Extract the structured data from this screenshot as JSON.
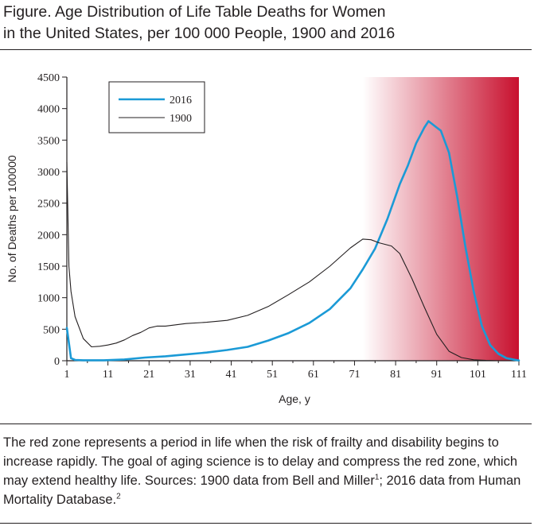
{
  "figure": {
    "title_line1": "Figure. Age Distribution of Life Table Deaths for Women",
    "title_line2": "in the United States, per 100 000 People, 1900 and 2016"
  },
  "caption": {
    "text1": "The red zone represents a period in life when the risk of frailty and disability begins to increase rapidly. The goal of aging science is to delay and compress the red zone, which may extend healthy life. Sources: 1900 data from Bell and Miller",
    "ref1": "1",
    "text2": "; 2016 data from Human Mortality Database.",
    "ref2": "2"
  },
  "colors": {
    "series_2016": "#1b9ad6",
    "series_1900": "#231f20",
    "red_zone_start": "#ffffff",
    "red_zone_end": "#c8102e"
  },
  "chart_data": {
    "type": "line",
    "xlabel": "Age, y",
    "ylabel": "No. of Deaths per 100000",
    "xlim": [
      1,
      111
    ],
    "ylim": [
      0,
      4500
    ],
    "x_ticks": [
      "1",
      "11",
      "21",
      "31",
      "41",
      "51",
      "61",
      "71",
      "81",
      "91",
      "101",
      "111"
    ],
    "y_ticks": [
      "0",
      "500",
      "1000",
      "1500",
      "2000",
      "2500",
      "3000",
      "3500",
      "4000",
      "4500"
    ],
    "legend_position": "top-left",
    "red_zone": {
      "from_age": 73,
      "to_age": 111
    },
    "series": [
      {
        "name": "2016",
        "color": "#1b9ad6",
        "x": [
          1,
          2,
          3,
          5,
          10,
          15,
          20,
          25,
          30,
          35,
          40,
          45,
          50,
          55,
          60,
          65,
          70,
          73,
          76,
          79,
          82,
          84,
          86,
          88,
          89,
          90,
          91,
          92,
          94,
          96,
          98,
          100,
          102,
          104,
          106,
          108,
          110,
          111
        ],
        "y": [
          520,
          40,
          12,
          8,
          8,
          20,
          50,
          70,
          100,
          130,
          170,
          220,
          320,
          440,
          600,
          820,
          1150,
          1450,
          1780,
          2250,
          2800,
          3100,
          3450,
          3700,
          3800,
          3750,
          3700,
          3650,
          3300,
          2600,
          1800,
          1100,
          550,
          250,
          110,
          40,
          15,
          5
        ]
      },
      {
        "name": "1900",
        "color": "#231f20",
        "x": [
          1,
          1.5,
          2,
          3,
          5,
          7,
          9,
          11,
          13,
          15,
          17,
          19,
          21,
          23,
          25,
          30,
          35,
          40,
          45,
          50,
          55,
          60,
          65,
          70,
          73,
          75,
          77,
          80,
          82,
          85,
          88,
          91,
          94,
          97,
          100,
          103,
          106
        ],
        "y": [
          3150,
          1500,
          1100,
          700,
          350,
          220,
          230,
          250,
          280,
          330,
          400,
          450,
          520,
          550,
          550,
          590,
          610,
          640,
          720,
          860,
          1050,
          1250,
          1500,
          1790,
          1930,
          1920,
          1870,
          1820,
          1700,
          1300,
          850,
          420,
          150,
          50,
          15,
          5,
          0
        ]
      }
    ]
  }
}
